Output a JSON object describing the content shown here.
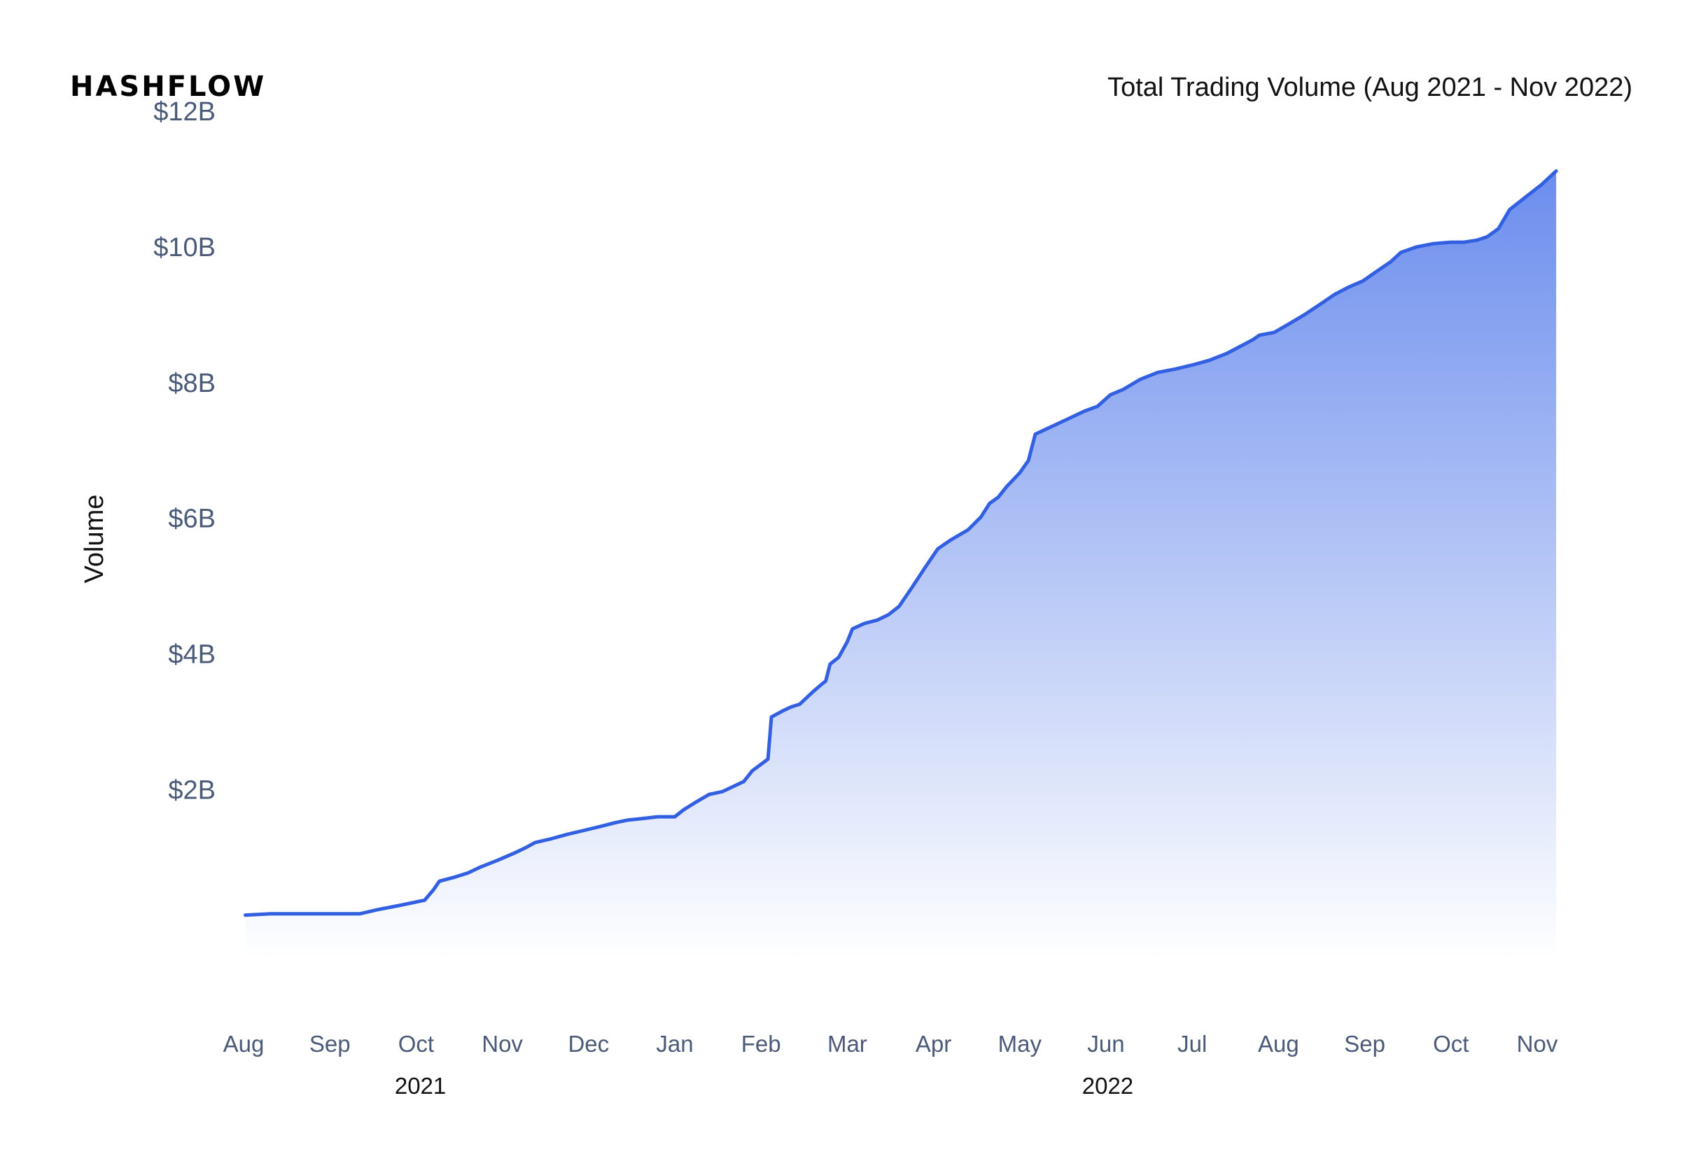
{
  "brand": {
    "logo_text": "HASHFLOW"
  },
  "chart_data": {
    "type": "area",
    "title": "Total Trading Volume (Aug 2021 - Nov 2022)",
    "xlabel": "",
    "ylabel": "Volume",
    "ylim": [
      -0.7,
      12.3
    ],
    "y_ticks": [
      {
        "value": 2,
        "label": "$2B"
      },
      {
        "value": 4,
        "label": "$4B"
      },
      {
        "value": 6,
        "label": "$6B"
      },
      {
        "value": 8,
        "label": "$8B"
      },
      {
        "value": 10,
        "label": "$10B"
      },
      {
        "value": 12,
        "label": "$12B"
      }
    ],
    "x_ticks": [
      "Aug",
      "Sep",
      "Oct",
      "Nov",
      "Dec",
      "Jan",
      "Feb",
      "Mar",
      "Apr",
      "May",
      "Jun",
      "Jul",
      "Aug",
      "Sep",
      "Oct",
      "Nov"
    ],
    "x_groups": [
      {
        "label": "2021",
        "month_index": 2.05
      },
      {
        "label": "2022",
        "month_index": 10.02
      }
    ],
    "grid": false,
    "legend": "none",
    "colors": {
      "line": "#3360e0",
      "fill_top": "#6b8ded",
      "fill_bottom": "#ffffff",
      "tick_text": "#4a5a78"
    },
    "series": [
      {
        "values": [
          [
            0.02,
            0.15
          ],
          [
            0.32,
            0.17
          ],
          [
            0.6,
            0.17
          ],
          [
            0.85,
            0.17
          ],
          [
            1.0,
            0.17
          ],
          [
            1.3,
            0.17
          ],
          [
            1.35,
            0.17
          ],
          [
            1.55,
            0.23
          ],
          [
            1.8,
            0.29
          ],
          [
            2.1,
            0.37
          ],
          [
            2.2,
            0.52
          ],
          [
            2.27,
            0.65
          ],
          [
            2.45,
            0.71
          ],
          [
            2.6,
            0.77
          ],
          [
            2.75,
            0.86
          ],
          [
            2.95,
            0.96
          ],
          [
            3.15,
            1.07
          ],
          [
            3.28,
            1.15
          ],
          [
            3.38,
            1.22
          ],
          [
            3.55,
            1.27
          ],
          [
            3.75,
            1.34
          ],
          [
            3.95,
            1.4
          ],
          [
            4.15,
            1.46
          ],
          [
            4.3,
            1.51
          ],
          [
            4.45,
            1.55
          ],
          [
            4.6,
            1.57
          ],
          [
            4.8,
            1.6
          ],
          [
            5.0,
            1.6
          ],
          [
            5.1,
            1.7
          ],
          [
            5.25,
            1.82
          ],
          [
            5.4,
            1.93
          ],
          [
            5.55,
            1.97
          ],
          [
            5.8,
            2.12
          ],
          [
            5.9,
            2.28
          ],
          [
            6.08,
            2.45
          ],
          [
            6.12,
            3.07
          ],
          [
            6.25,
            3.16
          ],
          [
            6.35,
            3.22
          ],
          [
            6.45,
            3.26
          ],
          [
            6.6,
            3.44
          ],
          [
            6.7,
            3.55
          ],
          [
            6.75,
            3.6
          ],
          [
            6.8,
            3.85
          ],
          [
            6.9,
            3.95
          ],
          [
            7.0,
            4.18
          ],
          [
            7.06,
            4.37
          ],
          [
            7.2,
            4.45
          ],
          [
            7.35,
            4.5
          ],
          [
            7.48,
            4.58
          ],
          [
            7.6,
            4.7
          ],
          [
            7.75,
            4.98
          ],
          [
            7.9,
            5.27
          ],
          [
            8.05,
            5.55
          ],
          [
            8.2,
            5.68
          ],
          [
            8.4,
            5.83
          ],
          [
            8.55,
            6.02
          ],
          [
            8.65,
            6.22
          ],
          [
            8.75,
            6.31
          ],
          [
            8.85,
            6.47
          ],
          [
            9.0,
            6.67
          ],
          [
            9.1,
            6.85
          ],
          [
            9.18,
            7.24
          ],
          [
            9.35,
            7.34
          ],
          [
            9.55,
            7.46
          ],
          [
            9.75,
            7.58
          ],
          [
            9.9,
            7.65
          ],
          [
            10.05,
            7.82
          ],
          [
            10.2,
            7.9
          ],
          [
            10.4,
            8.05
          ],
          [
            10.6,
            8.15
          ],
          [
            10.8,
            8.2
          ],
          [
            11.0,
            8.26
          ],
          [
            11.2,
            8.33
          ],
          [
            11.4,
            8.43
          ],
          [
            11.55,
            8.53
          ],
          [
            11.7,
            8.63
          ],
          [
            11.78,
            8.7
          ],
          [
            11.95,
            8.74
          ],
          [
            12.1,
            8.85
          ],
          [
            12.3,
            9.0
          ],
          [
            12.5,
            9.17
          ],
          [
            12.65,
            9.3
          ],
          [
            12.8,
            9.4
          ],
          [
            12.98,
            9.5
          ],
          [
            13.15,
            9.65
          ],
          [
            13.3,
            9.78
          ],
          [
            13.42,
            9.92
          ],
          [
            13.6,
            10.0
          ],
          [
            13.8,
            10.05
          ],
          [
            14.0,
            10.07
          ],
          [
            14.15,
            10.07
          ],
          [
            14.3,
            10.1
          ],
          [
            14.42,
            10.15
          ],
          [
            14.55,
            10.27
          ],
          [
            14.68,
            10.55
          ],
          [
            14.85,
            10.72
          ],
          [
            15.05,
            10.92
          ],
          [
            15.22,
            11.12
          ]
        ]
      }
    ]
  }
}
